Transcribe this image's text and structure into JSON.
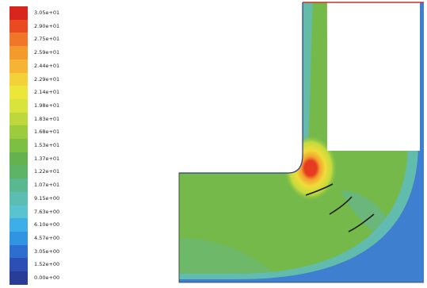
{
  "legend": {
    "entries": [
      {
        "label": "3.05e+01",
        "color": "#d9261c"
      },
      {
        "label": "2.90e+01",
        "color": "#ea4a22"
      },
      {
        "label": "2.75e+01",
        "color": "#f1762a"
      },
      {
        "label": "2.59e+01",
        "color": "#f39a2d"
      },
      {
        "label": "2.44e+01",
        "color": "#f6b434"
      },
      {
        "label": "2.29e+01",
        "color": "#f2d139"
      },
      {
        "label": "2.14e+01",
        "color": "#ece63a"
      },
      {
        "label": "1.98e+01",
        "color": "#d8e33b"
      },
      {
        "label": "1.83e+01",
        "color": "#bdd83c"
      },
      {
        "label": "1.68e+01",
        "color": "#9dcb3e"
      },
      {
        "label": "1.53e+01",
        "color": "#7dbf42"
      },
      {
        "label": "1.37e+01",
        "color": "#64b24f"
      },
      {
        "label": "1.22e+01",
        "color": "#5db466"
      },
      {
        "label": "1.07e+01",
        "color": "#5ab890"
      },
      {
        "label": "9.15e+00",
        "color": "#5cbdb2"
      },
      {
        "label": "7.63e+00",
        "color": "#59c3cf"
      },
      {
        "label": "6.10e+00",
        "color": "#3daee8"
      },
      {
        "label": "4.57e+00",
        "color": "#2f94e2"
      },
      {
        "label": "3.05e+00",
        "color": "#2c6fd0"
      },
      {
        "label": "1.52e+00",
        "color": "#2c4fb6"
      },
      {
        "label": "0.00e+00",
        "color": "#273d98"
      }
    ]
  },
  "contour_colors": {
    "bulk": "#74b94a",
    "upper_bulk": "#8ac443",
    "outer_wall_band": "#5fbcbf",
    "outer_wall_edge": "#3f7fd0",
    "inner_wall_edge": "#2b3a8f",
    "hot_core": "#e63a21",
    "hot_ring1": "#f3a22f",
    "hot_ring2": "#f0dc3a",
    "hot_ring3": "#c3da3c",
    "cool_patch": "#64b7a4"
  }
}
